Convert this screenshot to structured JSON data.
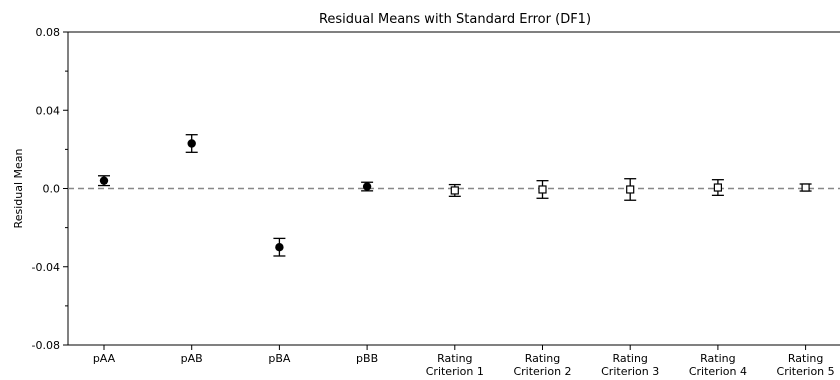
{
  "chart_data": {
    "type": "scatter",
    "title": "Residual Means with Standard Error (DF1)",
    "ylabel": "Residual Mean",
    "xlabel": "",
    "ylim": [
      -0.08,
      0.08
    ],
    "yticks": [
      {
        "value": 0.08,
        "label": "0.08"
      },
      {
        "value": 0.04,
        "label": "0.04"
      },
      {
        "value": 0.0,
        "label": "0.0"
      },
      {
        "value": -0.04,
        "label": "-0.04"
      },
      {
        "value": -0.08,
        "label": "-0.08"
      }
    ],
    "reference_line": {
      "y": 0.0,
      "style": "dashed",
      "color": "#888888"
    },
    "points": [
      {
        "label": [
          "pAA"
        ],
        "mean": 0.004,
        "se": 0.0025,
        "marker": "filled-circle"
      },
      {
        "label": [
          "pAB"
        ],
        "mean": 0.023,
        "se": 0.0045,
        "marker": "filled-circle"
      },
      {
        "label": [
          "pBA"
        ],
        "mean": -0.03,
        "se": 0.0045,
        "marker": "filled-circle"
      },
      {
        "label": [
          "pBB"
        ],
        "mean": 0.001,
        "se": 0.0022,
        "marker": "filled-circle"
      },
      {
        "label": [
          "Rating",
          "Criterion 1"
        ],
        "mean": -0.001,
        "se": 0.003,
        "marker": "open-square"
      },
      {
        "label": [
          "Rating",
          "Criterion 2"
        ],
        "mean": -0.0005,
        "se": 0.0045,
        "marker": "open-square"
      },
      {
        "label": [
          "Rating",
          "Criterion 3"
        ],
        "mean": -0.0005,
        "se": 0.0055,
        "marker": "open-square"
      },
      {
        "label": [
          "Rating",
          "Criterion 4"
        ],
        "mean": 0.0005,
        "se": 0.004,
        "marker": "open-square"
      },
      {
        "label": [
          "Rating",
          "Criterion 5"
        ],
        "mean": 0.0005,
        "se": 0.0018,
        "marker": "open-square"
      }
    ],
    "colors": {
      "marker": "#000000",
      "axis": "#000000",
      "zero_line": "#888888"
    }
  }
}
